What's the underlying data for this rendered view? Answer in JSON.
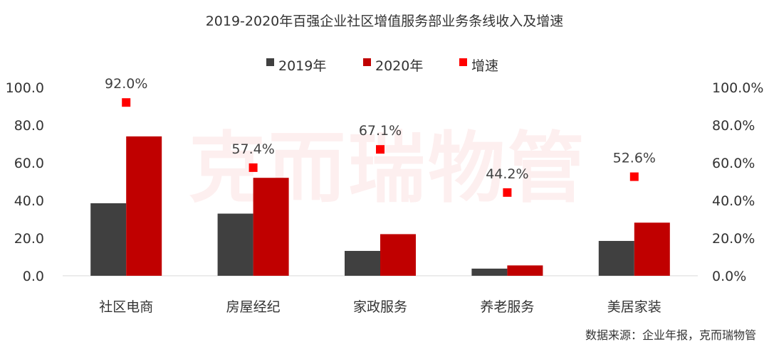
{
  "chart_data": {
    "type": "bar",
    "title": "2019-2020年百强企业社区增值服务部业务条线收入及增速",
    "categories": [
      "社区电商",
      "房屋经纪",
      "家政服务",
      "养老服务",
      "美居家装"
    ],
    "series": [
      {
        "name": "2019年",
        "axis": "left",
        "kind": "bar",
        "color": "#404040",
        "values": [
          38.5,
          33.0,
          13.2,
          3.8,
          18.5
        ]
      },
      {
        "name": "2020年",
        "axis": "left",
        "kind": "bar",
        "color": "#c00000",
        "values": [
          74.0,
          52.0,
          22.1,
          5.5,
          28.2
        ]
      },
      {
        "name": "增速",
        "axis": "right",
        "kind": "scatter",
        "color": "#ff0000",
        "values": [
          92.0,
          57.4,
          67.1,
          44.2,
          52.6
        ],
        "labels": [
          "92.0%",
          "57.4%",
          "67.1%",
          "44.2%",
          "52.6%"
        ]
      }
    ],
    "y_left": {
      "min": 0,
      "max": 100,
      "ticks": [
        "0.0",
        "20.0",
        "40.0",
        "60.0",
        "80.0",
        "100.0"
      ]
    },
    "y_right": {
      "min": 0,
      "max": 100,
      "ticks": [
        "0.0%",
        "20.0%",
        "40.0%",
        "60.0%",
        "80.0%",
        "100.0%"
      ]
    },
    "legend_position": "top-center",
    "grid": false
  },
  "watermark": "克而瑞物管",
  "source": "数据来源：企业年报，克而瑞物管"
}
